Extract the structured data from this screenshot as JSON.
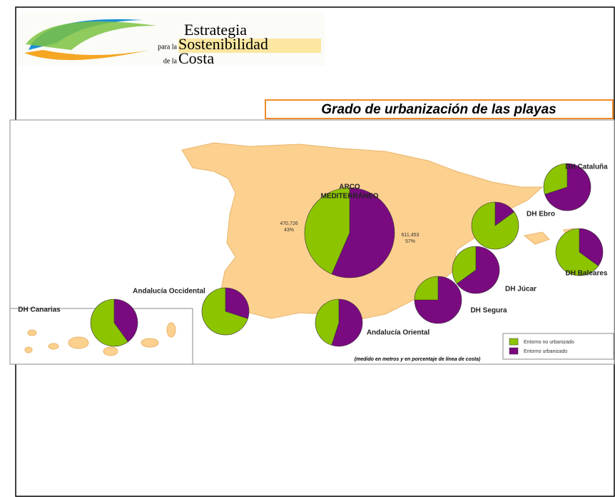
{
  "logo": {
    "line1": "Estrategia",
    "prefix2": "para la",
    "line2": "Sostenibilidad",
    "prefix3": "de la",
    "line3": "Costa"
  },
  "title": "Grado de urbanización de las playas",
  "regions": [
    {
      "name_lines": [
        "ARCO",
        "MEDITERRÁNEO"
      ],
      "values": [
        470726,
        611453
      ],
      "value_labels": [
        "470,726",
        "611,453"
      ],
      "percents": [
        43,
        57
      ],
      "percent_labels": [
        "43%",
        "57%"
      ]
    },
    {
      "name_lines": [
        "DH Cataluña"
      ],
      "values": [
        30,
        70
      ]
    },
    {
      "name_lines": [
        "DH Ebro"
      ],
      "values": [
        85,
        15
      ]
    },
    {
      "name_lines": [
        "DH Baleares"
      ],
      "values": [
        65,
        35
      ]
    },
    {
      "name_lines": [
        "DH Júcar"
      ],
      "values": [
        35,
        65
      ]
    },
    {
      "name_lines": [
        "DH Segura"
      ],
      "values": [
        25,
        75
      ]
    },
    {
      "name_lines": [
        "Andalucía Oriental"
      ],
      "values": [
        45,
        55
      ]
    },
    {
      "name_lines": [
        "Andalucía Occidental"
      ],
      "values": [
        70,
        30
      ]
    },
    {
      "name_lines": [
        "DH Canarias"
      ],
      "values": [
        60,
        40
      ]
    }
  ],
  "legend": [
    {
      "label": "Entorno no urbanizado",
      "color": "#8cc400"
    },
    {
      "label": "Entorno urbanizado",
      "color": "#7a0a80"
    }
  ],
  "note": "(medido en metros y en porcentaje de línea de costa)"
}
